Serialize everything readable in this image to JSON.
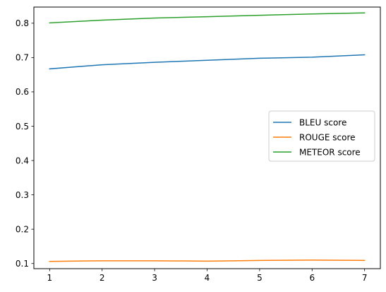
{
  "chart_data": {
    "type": "line",
    "title": "",
    "xlabel": "",
    "ylabel": "",
    "x": [
      1,
      2,
      3,
      4,
      5,
      6,
      7
    ],
    "xlim": [
      0.7,
      7.3
    ],
    "ylim": [
      0.085,
      0.847
    ],
    "xticks": [
      "1",
      "2",
      "3",
      "4",
      "5",
      "6",
      "7"
    ],
    "yticks": [
      "0.1",
      "0.2",
      "0.3",
      "0.4",
      "0.5",
      "0.6",
      "0.7",
      "0.8"
    ],
    "grid": false,
    "legend_position": "center-right",
    "series": [
      {
        "name": "BLEU score",
        "color": "#1f77b4",
        "values": [
          0.667,
          0.679,
          0.686,
          0.692,
          0.698,
          0.701,
          0.708
        ]
      },
      {
        "name": "ROUGE score",
        "color": "#ff7f0e",
        "values": [
          0.106,
          0.108,
          0.108,
          0.107,
          0.109,
          0.11,
          0.109
        ]
      },
      {
        "name": "METEOR score",
        "color": "#2ca02c",
        "values": [
          0.801,
          0.809,
          0.815,
          0.819,
          0.823,
          0.827,
          0.83
        ]
      }
    ]
  }
}
